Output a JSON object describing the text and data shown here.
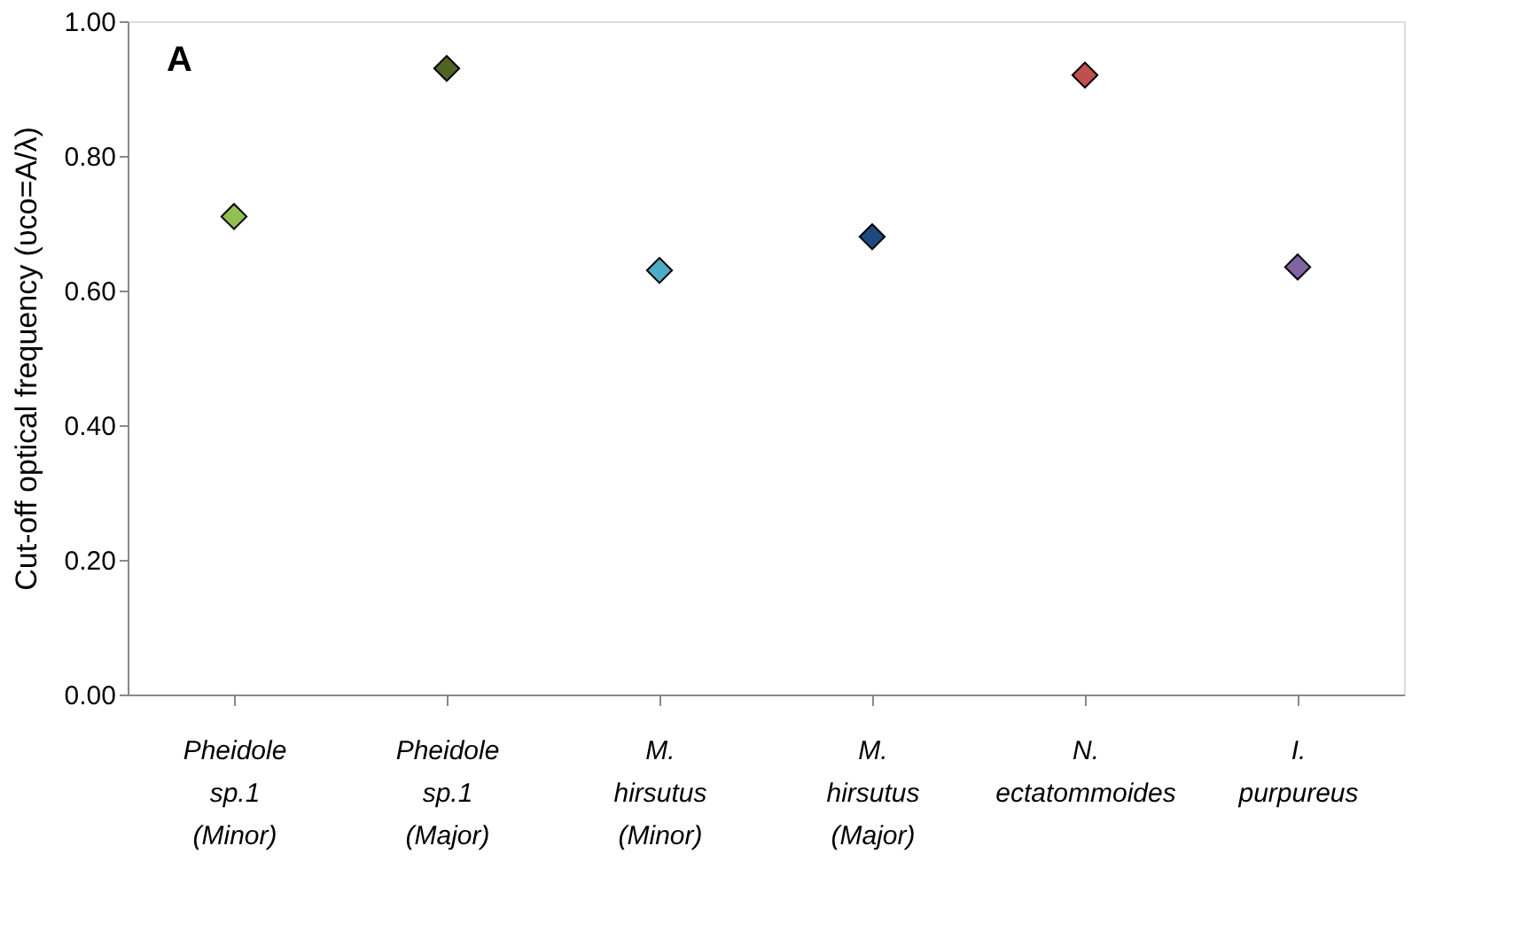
{
  "chart_data": {
    "type": "scatter",
    "categories": [
      "Pheidole\nsp.1\n(Minor)",
      "Pheidole\nsp.1\n(Major)",
      "M.\nhirsutus\n(Minor)",
      "M.\nhirsutus\n(Major)",
      "N.\nectatommoides",
      "I.\npurpureus"
    ],
    "values": [
      0.71,
      0.93,
      0.63,
      0.68,
      0.92,
      0.635
    ],
    "colors": [
      "#92c050",
      "#4f6228",
      "#4bacc6",
      "#1f497d",
      "#c0504d",
      "#8064a2"
    ],
    "marker": "diamond",
    "ylabel": "Cut-off optical frequency (υco=A/λ)",
    "ylim": [
      0,
      1
    ],
    "yticks": [
      {
        "value": 0,
        "label": "0.00"
      },
      {
        "value": 0.2,
        "label": "0.20"
      },
      {
        "value": 0.4,
        "label": "0.40"
      },
      {
        "value": 0.6,
        "label": "0.60"
      },
      {
        "value": 0.8,
        "label": "0.80"
      },
      {
        "value": 1,
        "label": "1.00"
      }
    ],
    "annotations": [
      "A"
    ],
    "grid": false
  }
}
